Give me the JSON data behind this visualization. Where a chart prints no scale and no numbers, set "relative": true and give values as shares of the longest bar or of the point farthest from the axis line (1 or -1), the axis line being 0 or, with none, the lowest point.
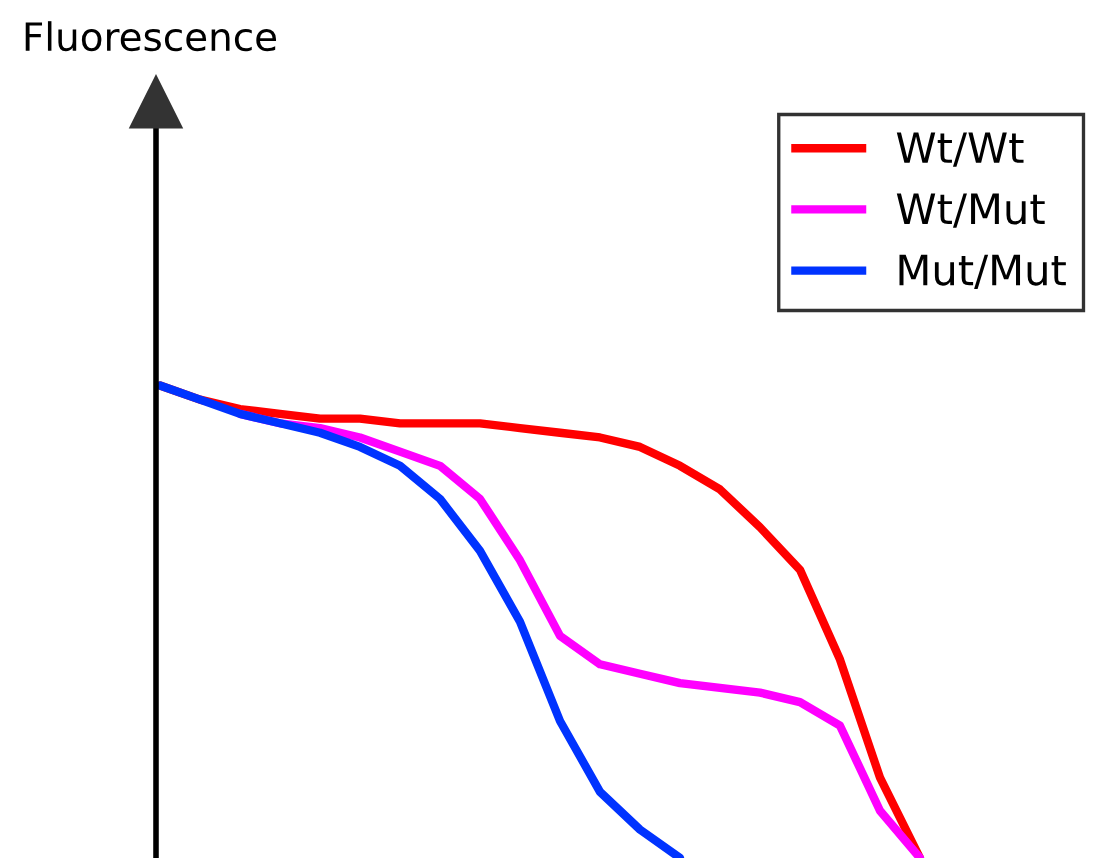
{
  "chart_data": {
    "type": "line",
    "relative": true,
    "annotations": [
      "Fluorescence"
    ],
    "legend": "top right",
    "categories": [
      null,
      null,
      null,
      null,
      null,
      null,
      null,
      null,
      null,
      null,
      null,
      null,
      null,
      null,
      null,
      null,
      null,
      null,
      null,
      null
    ],
    "series": [
      {
        "name": "Wt/Wt",
        "color": "#ff0000",
        "values": [
          1.0,
          0.97,
          0.95,
          0.94,
          0.93,
          0.93,
          0.92,
          0.92,
          0.92,
          0.91,
          0.9,
          0.89,
          0.87,
          0.83,
          0.78,
          0.7,
          0.61,
          0.42,
          0.17,
          0
        ]
      },
      {
        "name": "Wt/Mut",
        "color": "#ff00ff",
        "values": [
          null,
          null,
          0.94,
          0.92,
          0.91,
          0.89,
          0.86,
          0.83,
          0.76,
          0.63,
          0.47,
          0.41,
          0.39,
          0.37,
          0.36,
          0.35,
          0.33,
          0.28,
          0.1,
          0
        ]
      },
      {
        "name": "Mut/Mut",
        "color": "#0033ff",
        "values": [
          1.0,
          0.97,
          0.94,
          0.92,
          0.9,
          0.87,
          0.83,
          0.76,
          0.65,
          0.5,
          0.29,
          0.14,
          0.06,
          0,
          null,
          null,
          null,
          null,
          null,
          null
        ]
      }
    ]
  }
}
